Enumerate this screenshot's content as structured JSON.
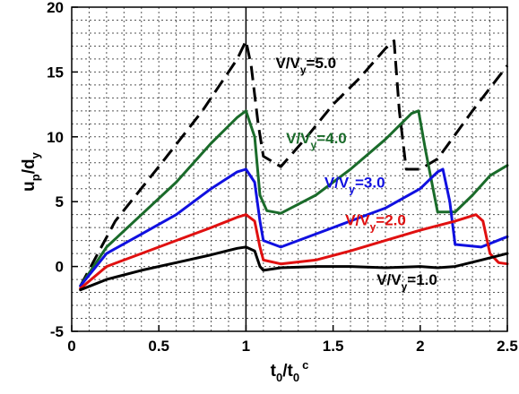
{
  "chart_data": {
    "type": "line",
    "xlabel": {
      "main1": "t",
      "sub1": "0",
      "main2": "/t",
      "sub2": "0",
      "sup2": "c"
    },
    "ylabel": {
      "main1": "u",
      "sub1": "p",
      "main2": "/d",
      "sub2": "y"
    },
    "xlim": [
      0,
      2.5
    ],
    "ylim": [
      -5,
      20
    ],
    "xticks": [
      0,
      0.5,
      1,
      1.5,
      2,
      2.5
    ],
    "xtick_labels": [
      "0",
      "0.5",
      "1",
      "1.5",
      "2",
      "2.5"
    ],
    "yticks": [
      -5,
      0,
      5,
      10,
      15,
      20
    ],
    "ytick_labels": [
      "-5",
      "0",
      "5",
      "10",
      "15",
      "20"
    ],
    "grid": true,
    "reference_line_x": 1.0,
    "series": [
      {
        "name": "V/Vy=5.0",
        "color": "#000000",
        "dashed": true,
        "label_parts": {
          "main1": "V/V",
          "sub": "y",
          "main2": "=5.0"
        },
        "x": [
          0.05,
          0.25,
          0.5,
          0.75,
          0.95,
          1.0,
          1.03,
          1.07,
          1.1,
          1.2,
          1.35,
          1.5,
          1.65,
          1.8,
          1.85,
          1.88,
          1.92,
          2.0,
          2.1,
          2.3,
          2.5
        ],
        "y": [
          -1.5,
          3.5,
          7.7,
          12.0,
          16.0,
          17.4,
          15.5,
          11.0,
          8.5,
          7.7,
          10.0,
          12.5,
          14.5,
          16.8,
          17.4,
          12.0,
          7.5,
          7.5,
          8.3,
          12.0,
          15.5
        ]
      },
      {
        "name": "V/Vy=4.0",
        "color": "#1a6b2a",
        "dashed": false,
        "label_parts": {
          "main1": "V/V",
          "sub": "y",
          "main2": "=4.0"
        },
        "x": [
          0.05,
          0.2,
          0.4,
          0.6,
          0.8,
          0.95,
          1.0,
          1.05,
          1.08,
          1.12,
          1.2,
          1.4,
          1.6,
          1.8,
          1.95,
          1.99,
          2.03,
          2.1,
          2.2,
          2.3,
          2.4,
          2.5
        ],
        "y": [
          -1.5,
          1.5,
          4.0,
          6.5,
          9.5,
          11.5,
          12.0,
          10.0,
          5.5,
          4.3,
          4.1,
          5.5,
          7.5,
          9.8,
          11.8,
          12.0,
          9.0,
          4.2,
          4.2,
          5.5,
          7.0,
          7.8
        ]
      },
      {
        "name": "V/Vy=3.0",
        "color": "#1010e0",
        "dashed": false,
        "label_parts": {
          "main1": "V/V",
          "sub": "y",
          "main2": "=3.0"
        },
        "x": [
          0.05,
          0.2,
          0.4,
          0.6,
          0.8,
          0.95,
          1.0,
          1.05,
          1.08,
          1.1,
          1.2,
          1.4,
          1.6,
          1.8,
          2.0,
          2.1,
          2.13,
          2.17,
          2.2,
          2.35,
          2.5
        ],
        "y": [
          -1.5,
          1.0,
          2.5,
          4.0,
          6.0,
          7.3,
          7.5,
          6.5,
          3.5,
          2.0,
          1.5,
          2.5,
          3.5,
          4.5,
          6.0,
          7.3,
          7.5,
          5.0,
          1.7,
          1.5,
          2.3
        ]
      },
      {
        "name": "V/Vy=2.0",
        "color": "#e01010",
        "dashed": false,
        "label_parts": {
          "main1": "V/V",
          "sub": "y",
          "main2": "=2.0"
        },
        "x": [
          0.05,
          0.2,
          0.4,
          0.6,
          0.8,
          0.95,
          1.0,
          1.05,
          1.08,
          1.1,
          1.2,
          1.4,
          1.6,
          1.8,
          2.0,
          2.2,
          2.32,
          2.36,
          2.4,
          2.45,
          2.5
        ],
        "y": [
          -1.7,
          0.0,
          1.0,
          2.0,
          3.0,
          3.8,
          4.0,
          3.5,
          1.5,
          0.5,
          0.2,
          0.5,
          1.2,
          2.0,
          2.8,
          3.5,
          4.0,
          3.5,
          1.0,
          0.3,
          0.2
        ]
      },
      {
        "name": "V/Vy=1.0",
        "color": "#000000",
        "dashed": false,
        "label_parts": {
          "main1": "V/V",
          "sub": "y",
          "main2": "=1.0"
        },
        "x": [
          0.05,
          0.2,
          0.4,
          0.6,
          0.8,
          0.95,
          1.0,
          1.05,
          1.08,
          1.1,
          1.2,
          1.4,
          1.6,
          1.8,
          2.0,
          2.1,
          2.2,
          2.35,
          2.5
        ],
        "y": [
          -1.8,
          -1.0,
          -0.3,
          0.3,
          0.9,
          1.4,
          1.5,
          1.2,
          0.0,
          -0.3,
          -0.1,
          0.0,
          0.0,
          -0.1,
          0.0,
          -0.1,
          0.0,
          0.5,
          1.0
        ]
      }
    ]
  }
}
